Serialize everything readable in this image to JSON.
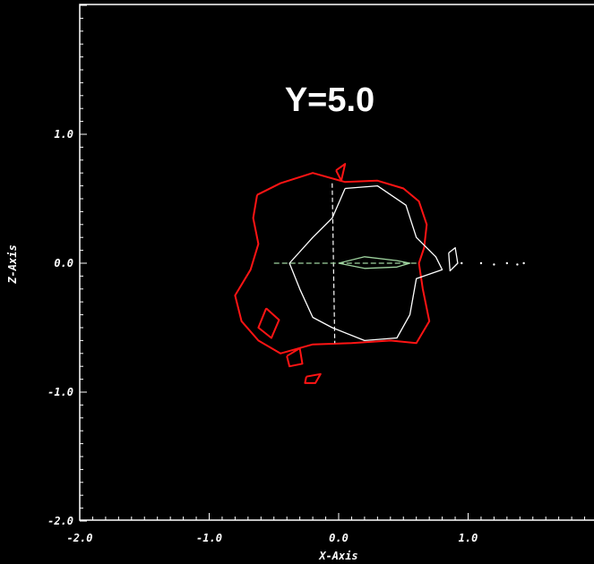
{
  "chart_data": {
    "type": "contour",
    "annotation": "Y=5.0",
    "xlabel": "X-Axis",
    "ylabel": "Z-Axis",
    "xlim": [
      -2.0,
      2.0
    ],
    "ylim": [
      -2.0,
      2.0
    ],
    "x_ticks": [
      {
        "value": -2.0,
        "label": "-2.0"
      },
      {
        "value": -1.0,
        "label": "-1.0"
      },
      {
        "value": 0.0,
        "label": "0.0"
      },
      {
        "value": 1.0,
        "label": "1.0"
      }
    ],
    "y_ticks": [
      {
        "value": -2.0,
        "label": "-2.0"
      },
      {
        "value": -1.0,
        "label": "-1.0"
      },
      {
        "value": 0.0,
        "label": "0.0"
      },
      {
        "value": 1.0,
        "label": "1.0"
      }
    ],
    "grid": false,
    "colors": {
      "background": "#000000",
      "frame": "#ffffff",
      "outer_contour": "#ff1414",
      "inner_contour": "#ffffff",
      "fill_contour": "#9fd49f"
    },
    "contours": [
      {
        "level": "outer",
        "color": "red",
        "points": [
          [
            -0.63,
            0.53
          ],
          [
            -0.45,
            0.62
          ],
          [
            -0.2,
            0.7
          ],
          [
            0.05,
            0.63
          ],
          [
            0.3,
            0.64
          ],
          [
            0.5,
            0.58
          ],
          [
            0.62,
            0.48
          ],
          [
            0.68,
            0.3
          ],
          [
            0.66,
            0.12
          ],
          [
            0.62,
            0.0
          ],
          [
            0.65,
            -0.2
          ],
          [
            0.7,
            -0.45
          ],
          [
            0.6,
            -0.62
          ],
          [
            0.4,
            -0.6
          ],
          [
            0.1,
            -0.62
          ],
          [
            -0.2,
            -0.63
          ],
          [
            -0.45,
            -0.7
          ],
          [
            -0.62,
            -0.6
          ],
          [
            -0.75,
            -0.45
          ],
          [
            -0.8,
            -0.25
          ],
          [
            -0.68,
            -0.05
          ],
          [
            -0.62,
            0.15
          ],
          [
            -0.66,
            0.35
          ]
        ]
      },
      {
        "level": "outer",
        "color": "red",
        "points": [
          [
            -0.56,
            -0.35
          ],
          [
            -0.62,
            -0.5
          ],
          [
            -0.52,
            -0.58
          ],
          [
            -0.46,
            -0.44
          ]
        ]
      },
      {
        "level": "outer",
        "color": "red",
        "points": [
          [
            -0.25,
            -0.88
          ],
          [
            -0.14,
            -0.86
          ],
          [
            -0.18,
            -0.93
          ],
          [
            -0.26,
            -0.93
          ]
        ]
      },
      {
        "level": "outer",
        "color": "red",
        "points": [
          [
            -0.4,
            -0.72
          ],
          [
            -0.3,
            -0.66
          ],
          [
            -0.28,
            -0.78
          ],
          [
            -0.38,
            -0.8
          ]
        ]
      },
      {
        "level": "outer",
        "color": "red",
        "points": [
          [
            -0.02,
            0.72
          ],
          [
            0.05,
            0.77
          ],
          [
            0.02,
            0.64
          ]
        ]
      },
      {
        "level": "inner",
        "color": "white",
        "points": [
          [
            0.05,
            0.58
          ],
          [
            0.3,
            0.6
          ],
          [
            0.52,
            0.45
          ],
          [
            0.6,
            0.2
          ],
          [
            0.75,
            0.05
          ],
          [
            0.8,
            -0.05
          ],
          [
            0.6,
            -0.12
          ],
          [
            0.55,
            -0.4
          ],
          [
            0.45,
            -0.58
          ],
          [
            0.2,
            -0.6
          ],
          [
            -0.05,
            -0.5
          ],
          [
            -0.2,
            -0.42
          ],
          [
            -0.3,
            -0.2
          ],
          [
            -0.38,
            0.0
          ],
          [
            -0.2,
            0.2
          ],
          [
            -0.05,
            0.35
          ]
        ]
      },
      {
        "level": "inner",
        "color": "white",
        "points": [
          [
            0.85,
            0.08
          ],
          [
            0.9,
            0.12
          ],
          [
            0.92,
            0.0
          ],
          [
            0.86,
            -0.06
          ]
        ]
      },
      {
        "level": "core",
        "color": "green",
        "points": [
          [
            0.0,
            0.0
          ],
          [
            0.2,
            0.05
          ],
          [
            0.45,
            0.02
          ],
          [
            0.55,
            0.0
          ],
          [
            0.45,
            -0.03
          ],
          [
            0.2,
            -0.04
          ]
        ]
      }
    ],
    "tail_points": [
      [
        0.95,
        0.0
      ],
      [
        1.1,
        0.0
      ],
      [
        1.2,
        -0.01
      ],
      [
        1.3,
        0.0
      ],
      [
        1.38,
        -0.01
      ],
      [
        1.43,
        0.0
      ]
    ]
  }
}
